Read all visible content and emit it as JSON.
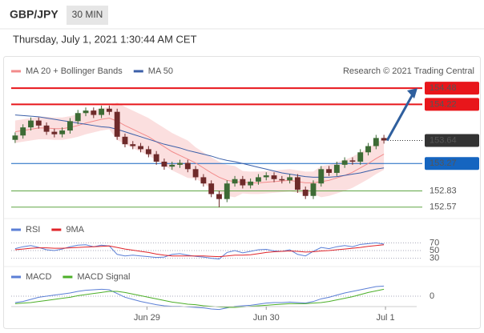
{
  "header": {
    "symbol": "GBP/JPY",
    "interval": "30 MIN",
    "timestamp": "Thursday, July 1, 2021 1:30:44 AM CET",
    "copyright": "Research © 2021 Trading Central"
  },
  "chart_data": [
    {
      "type": "candlestick",
      "xlim": [
        0,
        48
      ],
      "ylim": [
        152.49,
        154.61
      ],
      "up_color": "#3d6b35",
      "down_color": "#6e2a2a",
      "open": [
        153.65,
        153.72,
        153.85,
        153.96,
        153.88,
        153.78,
        153.74,
        153.8,
        153.95,
        154.08,
        154.12,
        154.05,
        154.15,
        154.1,
        153.7,
        153.58,
        153.55,
        153.5,
        153.42,
        153.3,
        153.22,
        153.25,
        153.28,
        153.18,
        153.05,
        152.95,
        152.78,
        152.7,
        152.95,
        153.02,
        152.92,
        152.98,
        153.05,
        153.08,
        153.02,
        153.0,
        153.05,
        152.85,
        152.75,
        152.95,
        153.18,
        153.12,
        153.25,
        153.32,
        153.3,
        153.45,
        153.55,
        153.68
      ],
      "high": [
        153.77,
        153.9,
        154.01,
        154.01,
        153.93,
        153.83,
        153.85,
        154.0,
        154.13,
        154.17,
        154.17,
        154.2,
        154.2,
        154.15,
        153.75,
        153.63,
        153.6,
        153.55,
        153.47,
        153.35,
        153.3,
        153.33,
        153.33,
        153.23,
        153.1,
        153.0,
        152.83,
        153.0,
        153.07,
        153.07,
        153.03,
        153.1,
        153.13,
        153.13,
        153.07,
        153.1,
        153.1,
        152.9,
        153.0,
        153.23,
        153.23,
        153.3,
        153.37,
        153.37,
        153.5,
        153.6,
        153.73,
        153.73
      ],
      "low": [
        153.6,
        153.67,
        153.8,
        153.83,
        153.73,
        153.69,
        153.69,
        153.75,
        153.9,
        154.03,
        154.0,
        154.0,
        154.05,
        153.65,
        153.53,
        153.5,
        153.45,
        153.37,
        153.25,
        153.17,
        153.17,
        153.2,
        153.13,
        153.0,
        152.9,
        152.73,
        152.57,
        152.65,
        152.9,
        152.87,
        152.87,
        152.93,
        153.0,
        152.97,
        152.95,
        152.95,
        152.8,
        152.7,
        152.7,
        152.9,
        153.07,
        153.07,
        153.2,
        153.25,
        153.25,
        153.4,
        153.5,
        153.59
      ],
      "close": [
        153.72,
        153.85,
        153.96,
        153.88,
        153.78,
        153.74,
        153.8,
        153.95,
        154.08,
        154.12,
        154.05,
        154.15,
        154.1,
        153.7,
        153.58,
        153.55,
        153.5,
        153.42,
        153.3,
        153.22,
        153.25,
        153.28,
        153.18,
        153.05,
        152.95,
        152.78,
        152.7,
        152.95,
        153.02,
        152.92,
        152.98,
        153.05,
        153.08,
        153.02,
        153.0,
        153.05,
        152.85,
        152.75,
        152.95,
        153.18,
        153.12,
        153.25,
        153.32,
        153.3,
        153.45,
        153.55,
        153.68,
        153.64
      ],
      "series": [
        {
          "name": "MA 20 + Bollinger Bands",
          "color": "#f28b8b",
          "values": [
            153.78,
            153.8,
            153.82,
            153.84,
            153.84,
            153.83,
            153.83,
            153.85,
            153.88,
            153.92,
            153.95,
            153.98,
            154.0,
            153.95,
            153.88,
            153.82,
            153.76,
            153.7,
            153.62,
            153.54,
            153.46,
            153.4,
            153.34,
            153.28,
            153.2,
            153.12,
            153.05,
            153.0,
            152.98,
            152.97,
            152.96,
            152.96,
            152.97,
            152.98,
            152.99,
            153.0,
            152.98,
            152.96,
            152.96,
            152.98,
            153.0,
            153.04,
            153.08,
            153.13,
            153.2,
            153.27,
            153.35,
            153.42
          ],
          "upper": [
            153.96,
            153.98,
            154.0,
            154.02,
            154.02,
            154.01,
            154.01,
            154.03,
            154.06,
            154.1,
            154.13,
            154.16,
            154.18,
            154.25,
            154.18,
            154.12,
            154.06,
            154.0,
            153.92,
            153.84,
            153.76,
            153.7,
            153.64,
            153.53,
            153.45,
            153.37,
            153.3,
            153.25,
            153.23,
            153.15,
            153.14,
            153.14,
            153.15,
            153.16,
            153.17,
            153.18,
            153.16,
            153.14,
            153.14,
            153.23,
            153.25,
            153.29,
            153.33,
            153.38,
            153.45,
            153.52,
            153.6,
            153.67
          ],
          "lower": [
            153.6,
            153.62,
            153.64,
            153.66,
            153.66,
            153.65,
            153.65,
            153.67,
            153.7,
            153.74,
            153.77,
            153.8,
            153.82,
            153.65,
            153.58,
            153.52,
            153.46,
            153.4,
            153.32,
            153.24,
            153.16,
            153.1,
            153.04,
            153.03,
            152.95,
            152.87,
            152.8,
            152.75,
            152.73,
            152.79,
            152.78,
            152.78,
            152.79,
            152.8,
            152.81,
            152.82,
            152.8,
            152.78,
            152.78,
            152.73,
            152.75,
            152.79,
            152.83,
            152.88,
            152.95,
            153.02,
            153.1,
            153.17
          ]
        },
        {
          "name": "MA 50",
          "color": "#3b5fa8",
          "values": [
            154.05,
            154.04,
            154.03,
            154.02,
            154.0,
            153.98,
            153.96,
            153.94,
            153.92,
            153.9,
            153.88,
            153.86,
            153.85,
            153.82,
            153.78,
            153.74,
            153.7,
            153.66,
            153.62,
            153.58,
            153.55,
            153.52,
            153.48,
            153.45,
            153.42,
            153.39,
            153.35,
            153.32,
            153.3,
            153.27,
            153.24,
            153.21,
            153.18,
            153.15,
            153.12,
            153.1,
            153.08,
            153.06,
            153.05,
            153.05,
            153.05,
            153.06,
            153.08,
            153.1,
            153.12,
            153.15,
            153.18,
            153.2
          ]
        }
      ],
      "levels": [
        {
          "value": 154.48,
          "color": "#e8161b",
          "label_box": true
        },
        {
          "value": 154.22,
          "color": "#e8161b",
          "label_box": true
        },
        {
          "value": 153.27,
          "color": "#1565c0",
          "label_box": true
        },
        {
          "value": 152.83,
          "color": "#5fa544",
          "label_box": false
        },
        {
          "value": 152.57,
          "color": "#5fa544",
          "label_box": false
        }
      ],
      "current": {
        "value": 153.64,
        "color": "#333333"
      },
      "target_arrow_color": "#2f5f9e"
    },
    {
      "type": "line",
      "xlim": [
        0,
        48
      ],
      "ylim": [
        25,
        75
      ],
      "yticks": [
        70,
        50,
        30
      ],
      "series": [
        {
          "name": "RSI",
          "color": "#5b7fd6",
          "values": [
            55,
            60,
            63,
            58,
            52,
            50,
            54,
            60,
            64,
            65,
            60,
            64,
            62,
            40,
            36,
            38,
            36,
            34,
            32,
            33,
            40,
            42,
            38,
            35,
            33,
            30,
            28,
            45,
            50,
            44,
            48,
            52,
            53,
            49,
            48,
            52,
            40,
            36,
            48,
            58,
            55,
            60,
            63,
            60,
            66,
            68,
            70,
            67
          ]
        },
        {
          "name": "9MA",
          "color": "#e0242a",
          "values": [
            52,
            54,
            56,
            57,
            57,
            56,
            56,
            57,
            58,
            59,
            60,
            61,
            62,
            58,
            54,
            51,
            48,
            45,
            41,
            38,
            36,
            36,
            36,
            36,
            36,
            35,
            34,
            36,
            38,
            38,
            39,
            42,
            45,
            47,
            48,
            49,
            48,
            46,
            47,
            49,
            50,
            52,
            54,
            56,
            58,
            61,
            63,
            65
          ]
        }
      ]
    },
    {
      "type": "line",
      "xlim": [
        0,
        48
      ],
      "ylim": [
        -0.3,
        0.3
      ],
      "yticks": [
        0
      ],
      "xticks": [
        {
          "value": 17.3,
          "label": "Jun 29"
        },
        {
          "value": 32.5,
          "label": "Jun 30"
        },
        {
          "value": 47.7,
          "label": "Jul 1"
        }
      ],
      "series": [
        {
          "name": "MACD",
          "color": "#5b7fd6",
          "values": [
            -0.12,
            -0.1,
            -0.06,
            -0.02,
            0.0,
            0.02,
            0.04,
            0.06,
            0.09,
            0.11,
            0.12,
            0.13,
            0.12,
            0.05,
            -0.02,
            -0.06,
            -0.1,
            -0.13,
            -0.16,
            -0.18,
            -0.19,
            -0.19,
            -0.2,
            -0.21,
            -0.22,
            -0.24,
            -0.25,
            -0.22,
            -0.19,
            -0.18,
            -0.17,
            -0.15,
            -0.13,
            -0.12,
            -0.12,
            -0.11,
            -0.12,
            -0.13,
            -0.1,
            -0.05,
            -0.02,
            0.02,
            0.06,
            0.09,
            0.12,
            0.15,
            0.18,
            0.19
          ]
        },
        {
          "name": "MACD Signal",
          "color": "#4caf28",
          "values": [
            -0.14,
            -0.13,
            -0.12,
            -0.1,
            -0.08,
            -0.06,
            -0.04,
            -0.02,
            0.01,
            0.03,
            0.05,
            0.07,
            0.09,
            0.09,
            0.07,
            0.04,
            0.01,
            -0.02,
            -0.05,
            -0.08,
            -0.11,
            -0.13,
            -0.15,
            -0.16,
            -0.18,
            -0.19,
            -0.2,
            -0.21,
            -0.21,
            -0.2,
            -0.19,
            -0.18,
            -0.17,
            -0.16,
            -0.15,
            -0.14,
            -0.14,
            -0.14,
            -0.13,
            -0.12,
            -0.1,
            -0.07,
            -0.04,
            -0.01,
            0.03,
            0.07,
            0.1,
            0.13
          ]
        }
      ]
    }
  ]
}
